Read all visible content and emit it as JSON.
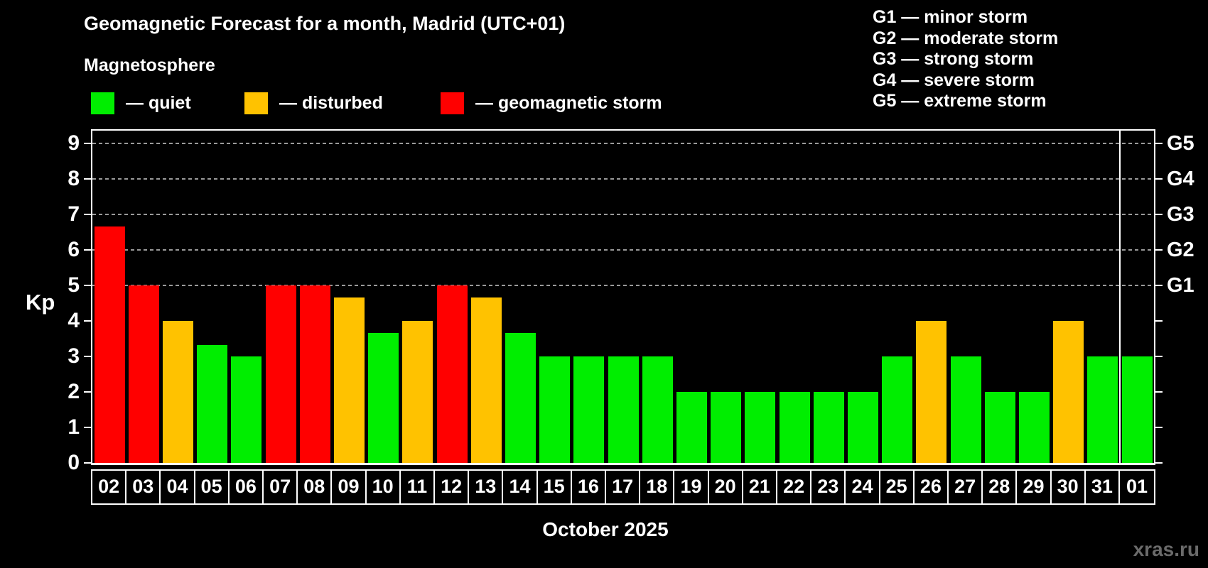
{
  "header": {
    "title": "Geomagnetic Forecast for a month, Madrid (UTC+01)",
    "subtitle": "Magnetosphere"
  },
  "legend": {
    "items": [
      {
        "name": "quiet",
        "label": "— quiet",
        "color": "#00ee00"
      },
      {
        "name": "disturbed",
        "label": "— disturbed",
        "color": "#ffc200"
      },
      {
        "name": "geomagnetic-storm",
        "label": "— geomagnetic storm",
        "color": "#ff0000"
      }
    ]
  },
  "g_legend": {
    "lines": [
      "G1 — minor storm",
      "G2 — moderate storm",
      "G3 — strong storm",
      "G4 — severe storm",
      "G5 — extreme storm"
    ]
  },
  "watermark": "xras.ru",
  "chart_data": {
    "type": "bar",
    "title": "Geomagnetic Forecast for a month, Madrid (UTC+01)",
    "subtitle": "Magnetosphere",
    "xlabel": "October 2025",
    "ylabel": "Kp",
    "ylim": [
      0,
      9.4
    ],
    "yticks": [
      0,
      1,
      2,
      3,
      4,
      5,
      6,
      7,
      8,
      9
    ],
    "grid": "dashed horizontal lines at Kp 5-9 only",
    "legend_position": "top-left",
    "categories": [
      "02",
      "03",
      "04",
      "05",
      "06",
      "07",
      "08",
      "09",
      "10",
      "11",
      "12",
      "13",
      "14",
      "15",
      "16",
      "17",
      "18",
      "19",
      "20",
      "21",
      "22",
      "23",
      "24",
      "25",
      "26",
      "27",
      "28",
      "29",
      "30",
      "31",
      "01"
    ],
    "values": [
      6.67,
      5,
      4,
      3.33,
      3,
      5,
      5,
      4.67,
      3.67,
      4,
      5,
      4.67,
      3.67,
      3,
      3,
      3,
      3,
      2,
      2,
      2,
      2,
      2,
      2,
      3,
      4,
      3,
      2,
      2,
      4,
      3,
      3
    ],
    "statuses": [
      "storm",
      "storm",
      "disturbed",
      "quiet",
      "quiet",
      "storm",
      "storm",
      "disturbed",
      "quiet",
      "disturbed",
      "storm",
      "disturbed",
      "quiet",
      "quiet",
      "quiet",
      "quiet",
      "quiet",
      "quiet",
      "quiet",
      "quiet",
      "quiet",
      "quiet",
      "quiet",
      "quiet",
      "disturbed",
      "quiet",
      "quiet",
      "quiet",
      "disturbed",
      "quiet",
      "quiet"
    ],
    "status_colors": {
      "quiet": "#00ee00",
      "disturbed": "#ffc200",
      "storm": "#ff0000"
    },
    "right_axis": [
      {
        "value": 5,
        "label": "G1"
      },
      {
        "value": 6,
        "label": "G2"
      },
      {
        "value": 7,
        "label": "G3"
      },
      {
        "value": 8,
        "label": "G4"
      },
      {
        "value": 9,
        "label": "G5"
      }
    ],
    "gridline_values": [
      5,
      6,
      7,
      8,
      9
    ],
    "month_separator_before_category": "01"
  }
}
